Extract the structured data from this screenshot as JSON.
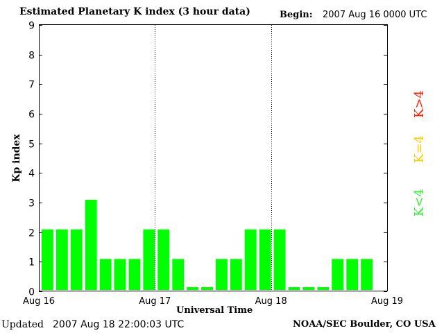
{
  "header": {
    "title": "Estimated Planetary K index (3 hour data)",
    "begin_label": "Begin:",
    "begin_value": "2007 Aug 16 0000 UTC"
  },
  "footer": {
    "updated_label": "Updated",
    "updated_value": "2007 Aug 18 22:00:03 UTC",
    "credit": "NOAA/SEC Boulder, CO USA"
  },
  "legend": [
    {
      "label": "K>4",
      "color": "#ff2200"
    },
    {
      "label": "K=4",
      "color": "#ffcc00"
    },
    {
      "label": "K<4",
      "color": "#33ee33"
    }
  ],
  "colors": {
    "bar_below_4": "#00ff00",
    "bar_equal_4": "#ffcc00",
    "bar_above_4": "#ff0000",
    "day_divider": "#000000"
  },
  "chart_data": {
    "type": "bar",
    "title": "Estimated Planetary K index (3 hour data)",
    "xlabel": "Universal Time",
    "ylabel": "Kp index",
    "ylim": [
      0,
      9
    ],
    "yticks": [
      "0",
      "1",
      "2",
      "3",
      "4",
      "5",
      "6",
      "7",
      "8",
      "9"
    ],
    "xticks": [
      "Aug 16",
      "Aug 17",
      "Aug 18",
      "Aug 19"
    ],
    "bars_per_day": 8,
    "num_slots": 24,
    "values": [
      2,
      2,
      2,
      3,
      1,
      1,
      1,
      2,
      2,
      1,
      0.05,
      0.05,
      1,
      1,
      2,
      2,
      2,
      0.05,
      0.05,
      0.05,
      1,
      1,
      1
    ],
    "day_dividers": [
      "Aug 17",
      "Aug 18"
    ],
    "grid": false,
    "legend_position": "right"
  }
}
